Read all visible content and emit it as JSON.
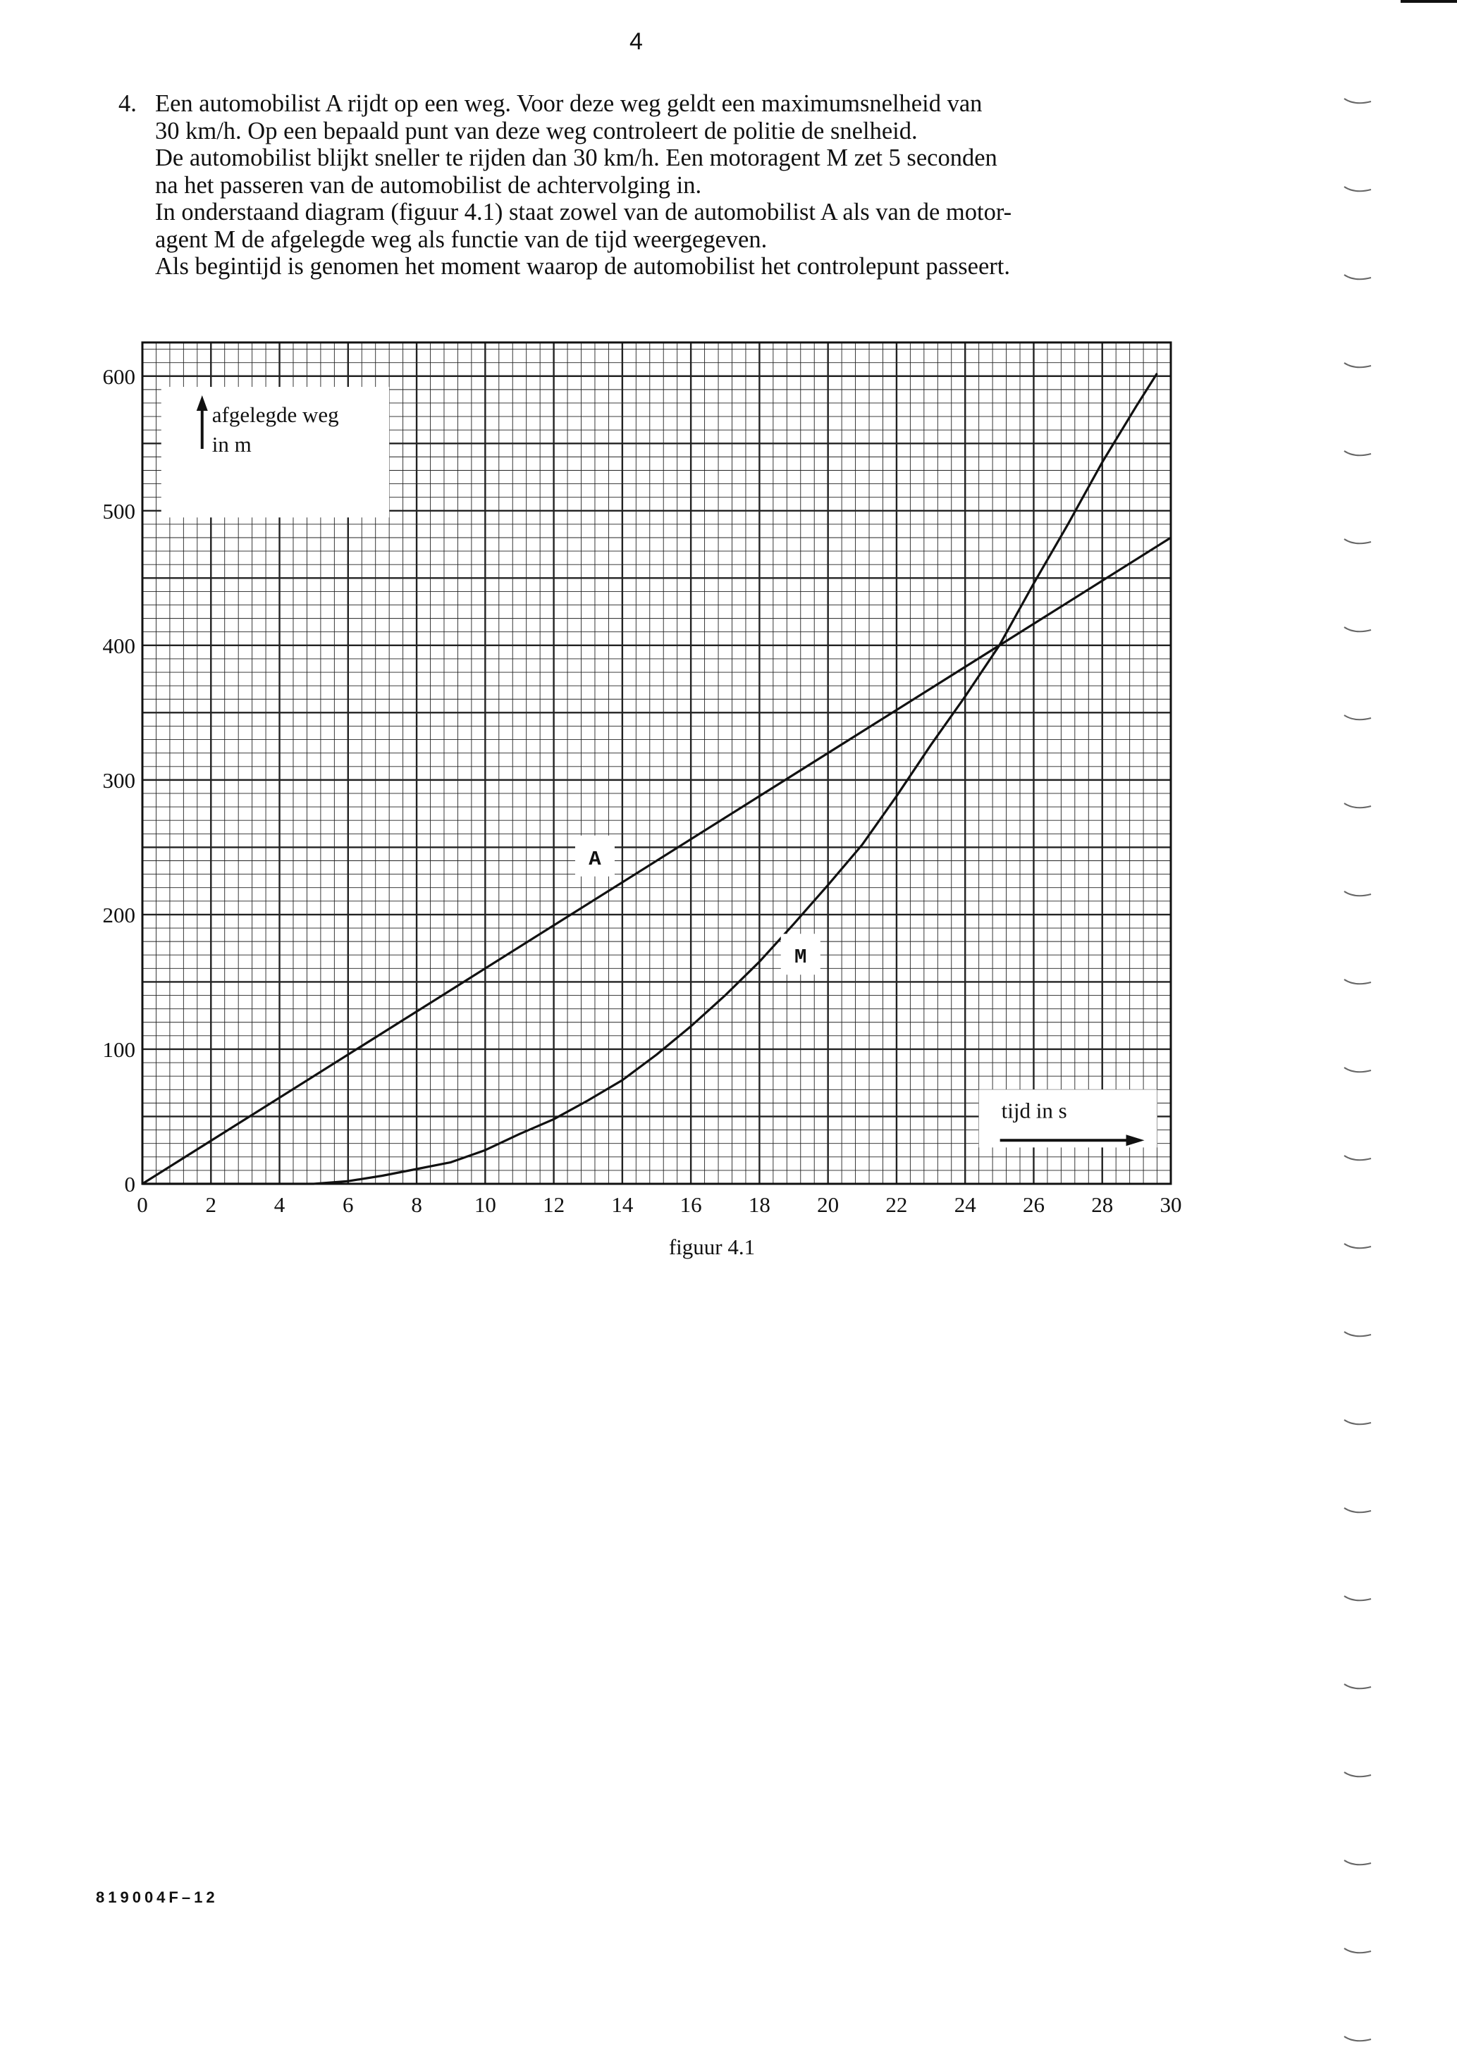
{
  "page": {
    "number": "4",
    "question_number": "4.",
    "question_lines": [
      "Een automobilist A rijdt op een weg. Voor deze weg geldt een maximumsnelheid van",
      "30 km/h. Op een bepaald punt van deze weg controleert de politie de snelheid.",
      "De automobilist blijkt sneller te rijden dan 30 km/h. Een motoragent M zet 5 seconden",
      "na het passeren van de automobilist de achtervolging in.",
      "In onderstaand diagram (figuur 4.1) staat zowel van de automobilist A als van de motor-",
      "agent M de afgelegde weg als functie van de tijd weergegeven.",
      "Als begintijd  is genomen het moment waarop de automobilist het controlepunt passeert."
    ],
    "figure_caption": "figuur 4.1",
    "footer_code": "819004F–12"
  },
  "chart_data": {
    "type": "line",
    "title": "",
    "xlabel": "tijd in s",
    "ylabel_lines": [
      "afgelegde weg",
      "in m"
    ],
    "xlim": [
      0,
      30
    ],
    "ylim": [
      0,
      625
    ],
    "x_ticks": [
      0,
      2,
      4,
      6,
      8,
      10,
      12,
      14,
      16,
      18,
      20,
      22,
      24,
      26,
      28,
      30
    ],
    "y_ticks": [
      0,
      100,
      200,
      300,
      400,
      500,
      600
    ],
    "grid": true,
    "series": [
      {
        "name": "A",
        "x": [
          0,
          30
        ],
        "y": [
          0,
          480
        ]
      },
      {
        "name": "M",
        "x": [
          5,
          6,
          7,
          8,
          9,
          10,
          11,
          12,
          13,
          14,
          15,
          16,
          17,
          18,
          19,
          20,
          21,
          22,
          23,
          24,
          25,
          26,
          27,
          28,
          29,
          29.6
        ],
        "y": [
          0,
          2,
          6,
          11,
          16,
          25,
          37,
          48,
          62,
          77,
          96,
          117,
          140,
          165,
          193,
          222,
          252,
          288,
          326,
          362,
          400,
          446,
          490,
          536,
          578,
          602
        ]
      }
    ],
    "colors": {
      "grid": "#222222",
      "line": "#111111",
      "background": "#ffffff"
    }
  }
}
